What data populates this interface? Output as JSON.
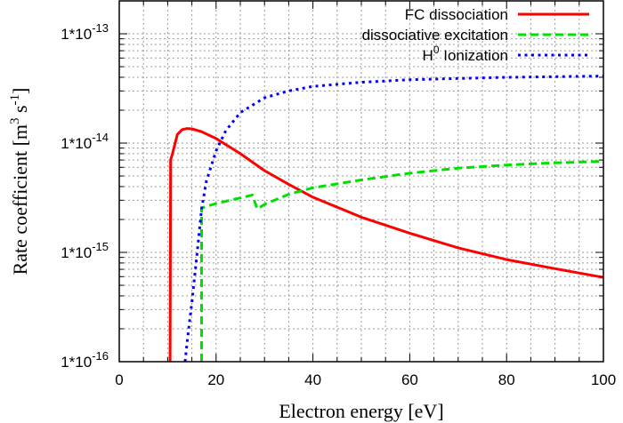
{
  "chart_data": {
    "type": "line",
    "xlabel": "Electron energy [eV]",
    "ylabel": "Rate coefficient [m^3 s^-1]",
    "ylabel_parts": {
      "main": "Rate coefficient [m",
      "sup1": "3",
      "mid": " s",
      "sup2": "-1",
      "end": "]"
    },
    "xlim": [
      0,
      100
    ],
    "ylim": [
      1e-16,
      2e-13
    ],
    "yscale": "log",
    "grid": true,
    "legend_placement": "top-right",
    "xticks": [
      0,
      20,
      40,
      60,
      80,
      100
    ],
    "xtick_labels": [
      "0",
      "20",
      "40",
      "60",
      "80",
      "100"
    ],
    "yticks": [
      1e-16,
      1e-15,
      1e-14,
      1e-13
    ],
    "ytick_labels": [
      {
        "base": "1*10",
        "exp": "-16"
      },
      {
        "base": "1*10",
        "exp": "-15"
      },
      {
        "base": "1*10",
        "exp": "-14"
      },
      {
        "base": "1*10",
        "exp": "-13"
      }
    ],
    "series": [
      {
        "name": "FC dissociation",
        "legend": {
          "main": "FC dissociation",
          "sup": ""
        },
        "color": "#ff0000",
        "dash": "solid",
        "x": [
          10.5,
          10.6,
          11,
          12,
          13,
          14,
          15,
          17,
          20,
          25,
          30,
          35,
          40,
          50,
          60,
          70,
          80,
          90,
          100
        ],
        "y": [
          1e-16,
          7e-15,
          8e-15,
          1.2e-14,
          1.33e-14,
          1.36e-14,
          1.35e-14,
          1.27e-14,
          1.1e-14,
          8e-15,
          5.6e-15,
          4.2e-15,
          3.2e-15,
          2.1e-15,
          1.5e-15,
          1.1e-15,
          8.6e-16,
          7.1e-16,
          5.9e-16
        ]
      },
      {
        "name": "dissociative excitation",
        "legend": {
          "main": "dissociative excitation",
          "sup": ""
        },
        "color": "#00e000",
        "dash": "dashed",
        "x": [
          17,
          17,
          20,
          25,
          27.5,
          28.5,
          30,
          35,
          40,
          50,
          60,
          70,
          80,
          90,
          100
        ],
        "y": [
          1e-16,
          2.55e-15,
          2.8e-15,
          3.15e-15,
          3.35e-15,
          2.5e-15,
          2.75e-15,
          3.4e-15,
          3.9e-15,
          4.6e-15,
          5.3e-15,
          5.9e-15,
          6.3e-15,
          6.6e-15,
          6.8e-15
        ]
      },
      {
        "name": "H0 Ionization",
        "legend": {
          "main": "H",
          "sup": "0",
          "rest": " Ionization"
        },
        "color": "#0000ff",
        "dash": "dotted",
        "x": [
          13.6,
          14,
          15,
          16,
          17,
          18,
          20,
          22,
          25,
          30,
          35,
          40,
          50,
          60,
          70,
          80,
          90,
          100
        ],
        "y": [
          1e-16,
          1.5e-16,
          3.5e-16,
          9e-16,
          2.5e-15,
          4.5e-15,
          8.5e-15,
          1.3e-14,
          1.9e-14,
          2.6e-14,
          3e-14,
          3.3e-14,
          3.6e-14,
          3.8e-14,
          3.9e-14,
          4e-14,
          4.05e-14,
          4.1e-14
        ]
      }
    ]
  }
}
